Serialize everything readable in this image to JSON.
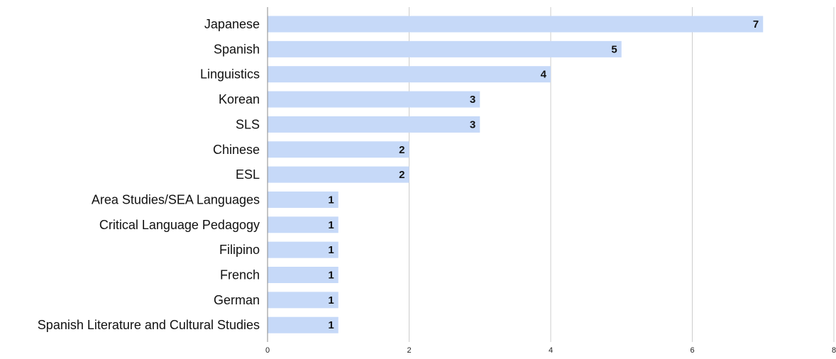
{
  "chart_data": {
    "type": "bar",
    "orientation": "horizontal",
    "title": "",
    "xlabel": "",
    "ylabel": "",
    "categories": [
      "Japanese",
      "Spanish",
      "Linguistics",
      "Korean",
      "SLS",
      "Chinese",
      "ESL",
      "Area Studies/SEA Languages",
      "Critical Language Pedagogy",
      "Filipino",
      "French",
      "German",
      "Spanish Literature and Cultural Studies"
    ],
    "values": [
      7,
      5,
      4,
      3,
      3,
      2,
      2,
      1,
      1,
      1,
      1,
      1,
      1
    ],
    "xlim": [
      0,
      8
    ],
    "xticks": [
      "0",
      "2",
      "4",
      "6",
      "8"
    ],
    "grid": true,
    "legend": "none",
    "bar_color": "#c6d9f8",
    "grid_color": "#cccccc",
    "axis_color": "#888888"
  }
}
